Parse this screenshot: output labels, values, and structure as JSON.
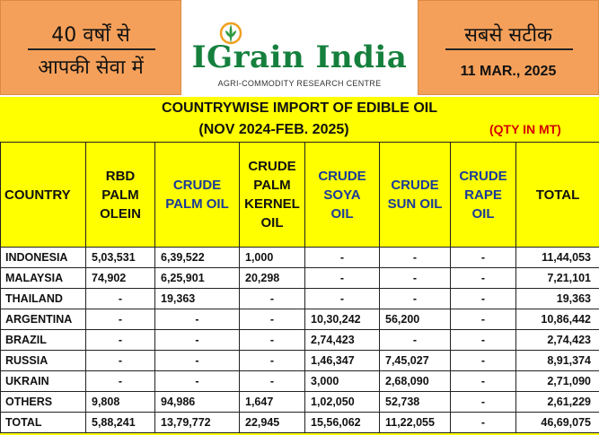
{
  "header": {
    "left_line1": "40 वर्षों से",
    "left_line2": "आपकी सेवा में",
    "logo_name": "IGrain India",
    "logo_tagline": "AGRI-COMMODITY RESEARCH CENTRE",
    "right_line1": "सबसे सटीक",
    "date": "11 MAR., 2025"
  },
  "report": {
    "title": "COUNTRYWISE IMPORT OF EDIBLE OIL",
    "period": "(NOV 2024-FEB. 2025)",
    "unit": "(QTY IN MT)"
  },
  "colors": {
    "sheet": "#ffff00",
    "header_box": "#f5a05a",
    "logo_green": "#15803d",
    "header_blue": "#1a3a9a",
    "unit_red": "#d40000"
  },
  "columns": [
    {
      "lines": [
        "COUNTRY"
      ],
      "style": "black"
    },
    {
      "lines": [
        "RBD",
        "PALM",
        "OLEIN"
      ],
      "style": "black"
    },
    {
      "lines": [
        "CRUDE",
        "PALM OIL"
      ],
      "style": "blue"
    },
    {
      "lines": [
        "CRUDE",
        "PALM",
        "KERNEL",
        "OIL"
      ],
      "style": "black"
    },
    {
      "lines": [
        "CRUDE",
        "SOYA",
        "OIL"
      ],
      "style": "blue"
    },
    {
      "lines": [
        "CRUDE",
        "SUN OIL"
      ],
      "style": "blue"
    },
    {
      "lines": [
        "CRUDE",
        "RAPE",
        "OIL"
      ],
      "style": "blue"
    },
    {
      "lines": [
        "TOTAL"
      ],
      "style": "black"
    }
  ],
  "rows": [
    {
      "country": "INDONESIA",
      "values": [
        "5,03,531",
        "6,39,522",
        "1,000",
        "-",
        "-",
        "-",
        "11,44,053"
      ]
    },
    {
      "country": "MALAYSIA",
      "values": [
        "74,902",
        "6,25,901",
        "20,298",
        "-",
        "-",
        "-",
        "7,21,101"
      ]
    },
    {
      "country": "THAILAND",
      "values": [
        "-",
        "19,363",
        "-",
        "-",
        "-",
        "-",
        "19,363"
      ]
    },
    {
      "country": "ARGENTINA",
      "values": [
        "-",
        "-",
        "-",
        "10,30,242",
        "56,200",
        "-",
        "10,86,442"
      ]
    },
    {
      "country": "BRAZIL",
      "values": [
        "-",
        "-",
        "-",
        "2,74,423",
        "-",
        "-",
        "2,74,423"
      ]
    },
    {
      "country": "RUSSIA",
      "values": [
        "-",
        "-",
        "-",
        "1,46,347",
        "7,45,027",
        "-",
        "8,91,374"
      ]
    },
    {
      "country": "UKRAIN",
      "values": [
        "-",
        "-",
        "-",
        "3,000",
        "2,68,090",
        "-",
        "2,71,090"
      ]
    },
    {
      "country": "OTHERS",
      "values": [
        "9,808",
        "94,986",
        "1,647",
        "1,02,050",
        "52,738",
        "-",
        "2,61,229"
      ]
    },
    {
      "country": "TOTAL",
      "values": [
        "5,88,241",
        "13,79,772",
        "22,945",
        "15,56,062",
        "11,22,055",
        "-",
        "46,69,075"
      ]
    }
  ]
}
